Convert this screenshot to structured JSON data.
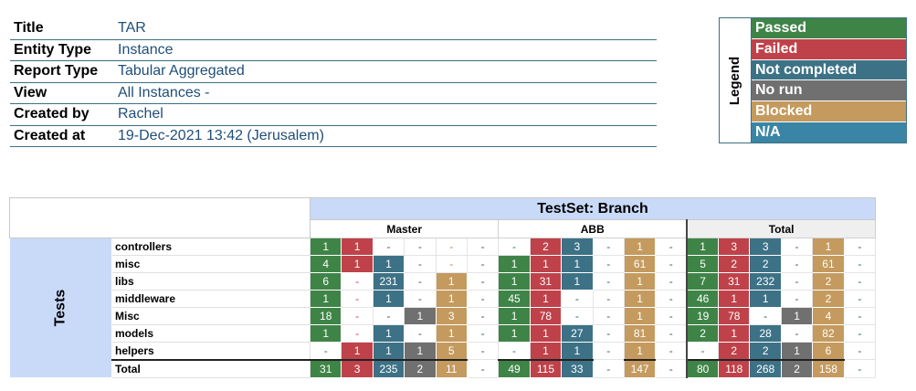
{
  "info": [
    {
      "label": "Title",
      "value": "TAR"
    },
    {
      "label": "Entity Type",
      "value": "Instance"
    },
    {
      "label": "Report Type",
      "value": "Tabular Aggregated"
    },
    {
      "label": "View",
      "value": "All Instances -"
    },
    {
      "label": "Created by",
      "value": "Rachel"
    },
    {
      "label": "Created at",
      "value": "19-Dec-2021  13:42 (Jerusalem)"
    }
  ],
  "legend": {
    "title": "Legend",
    "items": [
      {
        "key": "P",
        "label": "Passed",
        "color": "#3f8447"
      },
      {
        "key": "F",
        "label": "Failed",
        "color": "#bf424a"
      },
      {
        "key": "NC",
        "label": "Not completed",
        "color": "#3d7286"
      },
      {
        "key": "NR",
        "label": "No run",
        "color": "#707070"
      },
      {
        "key": "B",
        "label": "Blocked",
        "color": "#c49a5e"
      },
      {
        "key": "NA",
        "label": "N/A",
        "color": "#3a85a5"
      }
    ]
  },
  "matrix": {
    "title": "TestSet: Branch",
    "tests_label": "Tests",
    "groups": [
      "Master",
      "ABB",
      "Total"
    ],
    "empty_symbol": "-",
    "empty_colors": {
      "P": "#2f7a3d",
      "F": "#c04048",
      "NC": "#2f5f6b",
      "NR": "#555555",
      "B": "#b08a3e",
      "NA": "#2f5f6b"
    },
    "status_keys": [
      "P",
      "F",
      "NC",
      "NR",
      "B",
      "NA"
    ],
    "rows": [
      {
        "name": "controllers",
        "values": [
          [
            "1",
            "1",
            "-",
            "-",
            "-",
            "-"
          ],
          [
            "-",
            "2",
            "3",
            "-",
            "1",
            "-"
          ],
          [
            "1",
            "3",
            "3",
            "-",
            "1",
            "-"
          ]
        ]
      },
      {
        "name": "misc",
        "values": [
          [
            "4",
            "1",
            "1",
            "-",
            "-",
            "-"
          ],
          [
            "1",
            "1",
            "1",
            "-",
            "61",
            "-"
          ],
          [
            "5",
            "2",
            "2",
            "-",
            "61",
            "-"
          ]
        ]
      },
      {
        "name": "libs",
        "values": [
          [
            "6",
            "-",
            "231",
            "-",
            "1",
            "-"
          ],
          [
            "1",
            "31",
            "1",
            "-",
            "1",
            "-"
          ],
          [
            "7",
            "31",
            "232",
            "-",
            "2",
            "-"
          ]
        ]
      },
      {
        "name": "middleware",
        "values": [
          [
            "1",
            "-",
            "1",
            "-",
            "1",
            "-"
          ],
          [
            "45",
            "1",
            "-",
            "-",
            "1",
            "-"
          ],
          [
            "46",
            "1",
            "1",
            "-",
            "2",
            "-"
          ]
        ]
      },
      {
        "name": "Misc",
        "values": [
          [
            "18",
            "-",
            "-",
            "1",
            "3",
            "-"
          ],
          [
            "1",
            "78",
            "-",
            "-",
            "1",
            "-"
          ],
          [
            "19",
            "78",
            "-",
            "1",
            "4",
            "-"
          ]
        ]
      },
      {
        "name": "models",
        "values": [
          [
            "1",
            "-",
            "1",
            "-",
            "1",
            "-"
          ],
          [
            "1",
            "1",
            "27",
            "-",
            "81",
            "-"
          ],
          [
            "2",
            "1",
            "28",
            "-",
            "82",
            "-"
          ]
        ]
      },
      {
        "name": "helpers",
        "values": [
          [
            "-",
            "1",
            "1",
            "1",
            "5",
            "-"
          ],
          [
            "-",
            "1",
            "1",
            "-",
            "1",
            "-"
          ],
          [
            "-",
            "2",
            "2",
            "1",
            "6",
            "-"
          ]
        ]
      }
    ],
    "total_row": {
      "name": "Total",
      "values": [
        [
          "31",
          "3",
          "235",
          "2",
          "11",
          "-"
        ],
        [
          "49",
          "115",
          "33",
          "-",
          "147",
          "-"
        ],
        [
          "80",
          "118",
          "268",
          "2",
          "158",
          "-"
        ]
      ]
    }
  }
}
